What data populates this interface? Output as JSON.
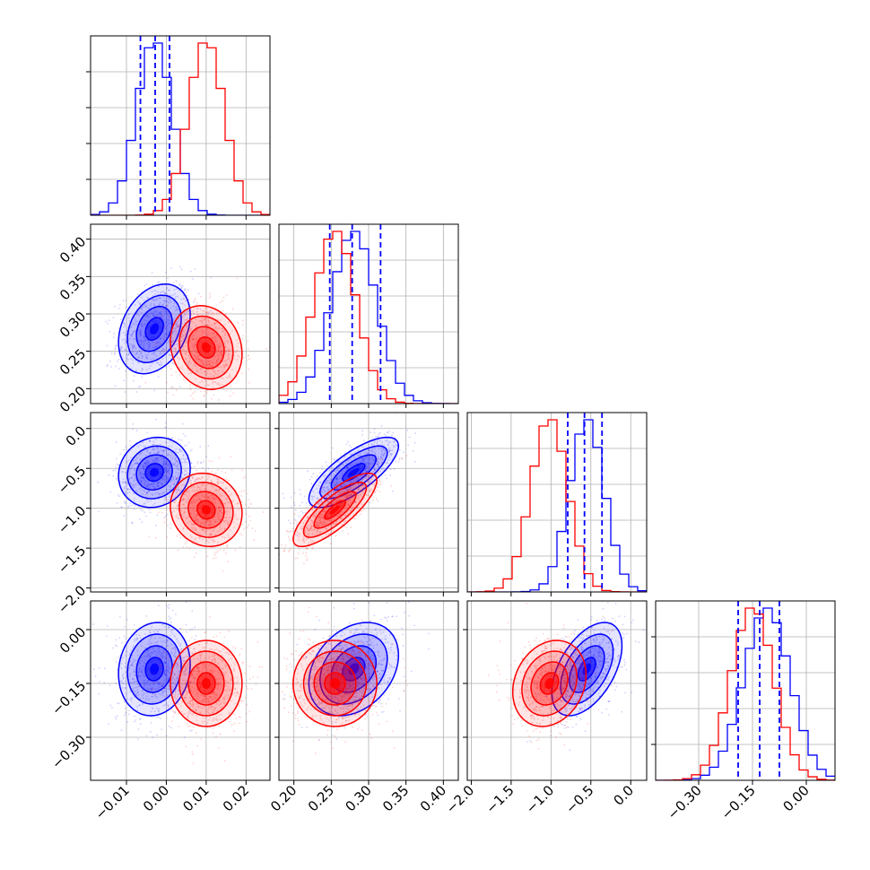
{
  "chart_data": {
    "type": "corner",
    "title": "",
    "parameters": [
      {
        "xlim": [
          -0.019,
          0.026
        ],
        "xticks": [
          -0.01,
          0.0,
          0.01,
          0.02
        ],
        "xtick_labels": [
          "−0.01",
          "0.00",
          "0.01",
          "0.02"
        ]
      },
      {
        "xlim": [
          0.18,
          0.42
        ],
        "xticks": [
          0.2,
          0.25,
          0.3,
          0.35,
          0.4
        ],
        "xtick_labels": [
          "0.20",
          "0.25",
          "0.30",
          "0.35",
          "0.40"
        ]
      },
      {
        "xlim": [
          -2.05,
          0.2
        ],
        "xticks": [
          -2.0,
          -1.5,
          -1.0,
          -0.5,
          0.0
        ],
        "xtick_labels": [
          "−2.0",
          "−1.5",
          "−1.0",
          "−0.5",
          "0.0"
        ]
      },
      {
        "xlim": [
          -0.42,
          0.08
        ],
        "xticks": [
          -0.3,
          -0.15,
          0.0
        ],
        "xtick_labels": [
          "−0.30",
          "−0.15",
          "0.00"
        ]
      }
    ],
    "row_ticks": [
      null,
      {
        "ylim": [
          0.18,
          0.42
        ],
        "yticks": [
          0.2,
          0.25,
          0.3,
          0.35,
          0.4
        ],
        "ytick_labels": [
          "0.20",
          "0.25",
          "0.30",
          "0.35",
          "0.40"
        ]
      },
      {
        "ylim": [
          -2.05,
          0.2
        ],
        "yticks": [
          -2.0,
          -1.5,
          -1.0,
          -0.5,
          0.0
        ],
        "ytick_labels": [
          "−2.0",
          "−1.5",
          "−1.0",
          "−0.5",
          "0.0"
        ]
      },
      {
        "ylim": [
          -0.42,
          0.08
        ],
        "yticks": [
          -0.3,
          -0.15,
          0.0
        ],
        "ytick_labels": [
          "−0.30",
          "−0.15",
          "0.00"
        ]
      }
    ],
    "series": [
      {
        "color": "#0000ff",
        "mean": [
          -0.003,
          0.28,
          -0.55,
          -0.11
        ],
        "sd": [
          0.0045,
          0.03,
          0.22,
          0.065
        ],
        "corr": [
          [
            0,
            1,
            0.3
          ],
          [
            0,
            2,
            0.1
          ],
          [
            0,
            3,
            0.1
          ],
          [
            1,
            2,
            0.75
          ],
          [
            1,
            3,
            0.3
          ],
          [
            2,
            3,
            0.5
          ]
        ]
      },
      {
        "color": "#ff0000",
        "mean": [
          0.01,
          0.255,
          -1.02,
          -0.15
        ],
        "sd": [
          0.0045,
          0.028,
          0.23,
          0.06
        ],
        "corr": [
          [
            0,
            1,
            -0.15
          ],
          [
            0,
            2,
            -0.1
          ],
          [
            0,
            3,
            0.0
          ],
          [
            1,
            2,
            0.8
          ],
          [
            1,
            3,
            0.0
          ],
          [
            2,
            3,
            0.2
          ]
        ]
      }
    ],
    "quantiles": {
      "color": "#0000ff",
      "lines": [
        [
          -0.0065,
          -0.0028,
          0.0008
        ],
        [
          0.248,
          0.278,
          0.316
        ],
        [
          -0.79,
          -0.58,
          -0.36
        ],
        [
          -0.19,
          -0.13,
          -0.075
        ]
      ]
    },
    "grid": true
  }
}
